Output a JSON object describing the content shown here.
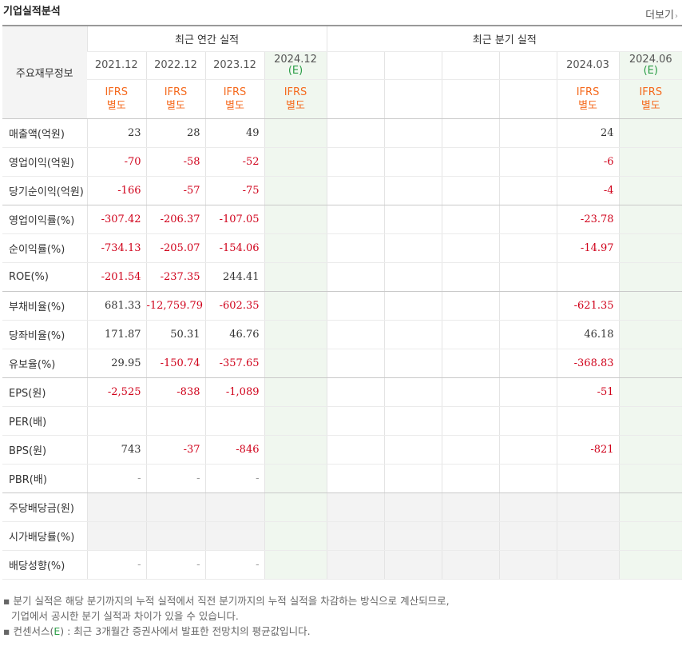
{
  "title": "기업실적분석",
  "more_label": "더보기",
  "more_arrow": "›",
  "row_header": "주요재무정보",
  "group_annual": "최근 연간 실적",
  "group_quarter": "최근 분기 실적",
  "annual_dates": [
    {
      "date": "2021.12",
      "est": ""
    },
    {
      "date": "2022.12",
      "est": ""
    },
    {
      "date": "2023.12",
      "est": ""
    },
    {
      "date": "2024.12",
      "est": "(E)"
    }
  ],
  "quarter_dates": [
    {
      "date": "",
      "est": ""
    },
    {
      "date": "",
      "est": ""
    },
    {
      "date": "",
      "est": ""
    },
    {
      "date": "",
      "est": ""
    },
    {
      "date": "2024.03",
      "est": ""
    },
    {
      "date": "2024.06",
      "est": "(E)"
    }
  ],
  "ifrs_line1": "IFRS",
  "ifrs_line2": "별도",
  "rows": [
    {
      "label": "매출액(억원)",
      "annual": [
        "23",
        "28",
        "49",
        ""
      ],
      "quarter": [
        "",
        "",
        "",
        "",
        "24",
        ""
      ]
    },
    {
      "label": "영업이익(억원)",
      "annual": [
        "-70",
        "-58",
        "-52",
        ""
      ],
      "quarter": [
        "",
        "",
        "",
        "",
        "-6",
        ""
      ]
    },
    {
      "label": "당기순이익(억원)",
      "annual": [
        "-166",
        "-57",
        "-75",
        ""
      ],
      "quarter": [
        "",
        "",
        "",
        "",
        "-4",
        ""
      ]
    },
    {
      "label": "영업이익률(%)",
      "annual": [
        "-307.42",
        "-206.37",
        "-107.05",
        ""
      ],
      "quarter": [
        "",
        "",
        "",
        "",
        "-23.78",
        ""
      ]
    },
    {
      "label": "순이익률(%)",
      "annual": [
        "-734.13",
        "-205.07",
        "-154.06",
        ""
      ],
      "quarter": [
        "",
        "",
        "",
        "",
        "-14.97",
        ""
      ]
    },
    {
      "label": "ROE(%)",
      "annual": [
        "-201.54",
        "-237.35",
        "244.41",
        ""
      ],
      "quarter": [
        "",
        "",
        "",
        "",
        "",
        ""
      ]
    },
    {
      "label": "부채비율(%)",
      "annual": [
        "681.33",
        "-12,759.79",
        "-602.35",
        ""
      ],
      "quarter": [
        "",
        "",
        "",
        "",
        "-621.35",
        ""
      ]
    },
    {
      "label": "당좌비율(%)",
      "annual": [
        "171.87",
        "50.31",
        "46.76",
        ""
      ],
      "quarter": [
        "",
        "",
        "",
        "",
        "46.18",
        ""
      ]
    },
    {
      "label": "유보율(%)",
      "annual": [
        "29.95",
        "-150.74",
        "-357.65",
        ""
      ],
      "quarter": [
        "",
        "",
        "",
        "",
        "-368.83",
        ""
      ]
    },
    {
      "label": "EPS(원)",
      "annual": [
        "-2,525",
        "-838",
        "-1,089",
        ""
      ],
      "quarter": [
        "",
        "",
        "",
        "",
        "-51",
        ""
      ]
    },
    {
      "label": "PER(배)",
      "annual": [
        "",
        "",
        "",
        ""
      ],
      "quarter": [
        "",
        "",
        "",
        "",
        "",
        ""
      ]
    },
    {
      "label": "BPS(원)",
      "annual": [
        "743",
        "-37",
        "-846",
        ""
      ],
      "quarter": [
        "",
        "",
        "",
        "",
        "-821",
        ""
      ]
    },
    {
      "label": "PBR(배)",
      "annual": [
        "-",
        "-",
        "-",
        ""
      ],
      "quarter": [
        "",
        "",
        "",
        "",
        "",
        ""
      ]
    },
    {
      "label": "주당배당금(원)",
      "annual": [
        "",
        "",
        "",
        ""
      ],
      "quarter": [
        "",
        "",
        "",
        "",
        "",
        ""
      ]
    },
    {
      "label": "시가배당률(%)",
      "annual": [
        "",
        "",
        "",
        ""
      ],
      "quarter": [
        "",
        "",
        "",
        "",
        "",
        ""
      ]
    },
    {
      "label": "배당성향(%)",
      "annual": [
        "-",
        "-",
        "-",
        ""
      ],
      "quarter": [
        "",
        "",
        "",
        "",
        "",
        ""
      ]
    }
  ],
  "notes": {
    "line1": "분기 실적은 해당 분기까지의 누적 실적에서 직전 분기까지의 누적 실적을 차감하는 방식으로 계산되므로,",
    "line2": "기업에서 공시한 분기 실적과 차이가 있을 수 있습니다.",
    "line3_pre": "컨센서스(",
    "line3_e": "E",
    "line3_post": ") : 최근 3개월간 증권사에서 발표한 전망치의 평균값입니다.",
    "bullet": "▪"
  },
  "colors": {
    "negative": "#d0021b",
    "ifrs": "#f56a1e",
    "estimate": "#2a9d46",
    "estimate_bg": "#f0f7ef"
  }
}
